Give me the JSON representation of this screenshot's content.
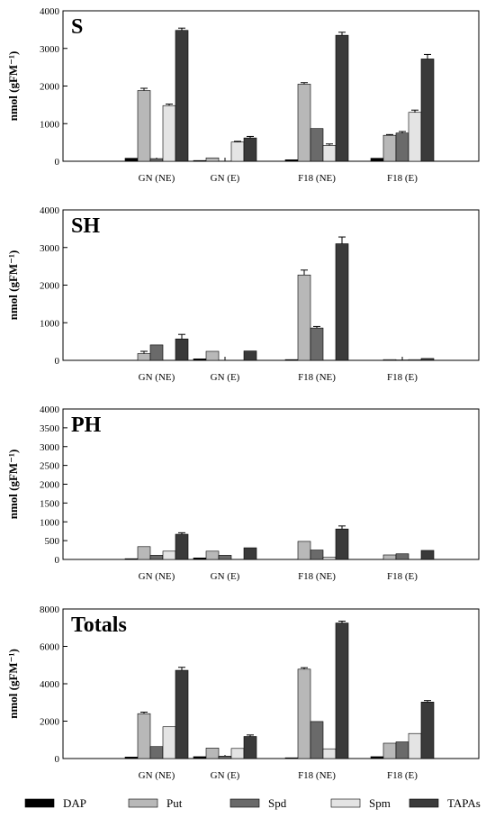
{
  "colors": {
    "DAP": "#000000",
    "Put": "#b8b8b8",
    "Spd": "#6a6a6a",
    "Spm": "#e4e4e4",
    "TAPAs": "#3a3a3a"
  },
  "legend": {
    "items": [
      "DAP",
      "Put",
      "Spd",
      "Spm",
      "TAPAs"
    ],
    "placement": "bottom"
  },
  "chart_data": [
    {
      "type": "bar",
      "title": "S",
      "ylabel": "nmol (gFM⁻¹)",
      "ylim": [
        0,
        4000
      ],
      "yticks": [
        0,
        1000,
        2000,
        3000,
        4000
      ],
      "categories": [
        "GN (NE)",
        "GN (E)",
        "F18 (NE)",
        "F18 (E)"
      ],
      "series": [
        {
          "name": "DAP",
          "values": [
            80,
            20,
            40,
            80
          ],
          "errors": [
            0,
            0,
            0,
            0
          ]
        },
        {
          "name": "Put",
          "values": [
            1880,
            90,
            2050,
            690
          ],
          "errors": [
            60,
            0,
            40,
            20
          ]
        },
        {
          "name": "Spd",
          "values": [
            70,
            0,
            870,
            750
          ],
          "errors": [
            0,
            0,
            0,
            40
          ]
        },
        {
          "name": "Spm",
          "values": [
            1480,
            510,
            420,
            1300
          ],
          "errors": [
            40,
            20,
            40,
            60
          ]
        },
        {
          "name": "TAPAs",
          "values": [
            3480,
            620,
            3350,
            2720
          ],
          "errors": [
            60,
            40,
            80,
            120
          ]
        }
      ]
    },
    {
      "type": "bar",
      "title": "SH",
      "ylabel": "nmol (gFM⁻¹)",
      "ylim": [
        0,
        4000
      ],
      "yticks": [
        0,
        1000,
        2000,
        3000,
        4000
      ],
      "categories": [
        "GN (NE)",
        "GN (E)",
        "F18 (NE)",
        "F18 (E)"
      ],
      "series": [
        {
          "name": "DAP",
          "values": [
            0,
            40,
            20,
            0
          ],
          "errors": [
            0,
            0,
            0,
            0
          ]
        },
        {
          "name": "Put",
          "values": [
            180,
            240,
            2270,
            20
          ],
          "errors": [
            60,
            0,
            130,
            0
          ]
        },
        {
          "name": "Spd",
          "values": [
            410,
            0,
            860,
            10
          ],
          "errors": [
            0,
            0,
            40,
            0
          ]
        },
        {
          "name": "Spm",
          "values": [
            0,
            0,
            0,
            20
          ],
          "errors": [
            0,
            0,
            0,
            0
          ]
        },
        {
          "name": "TAPAs",
          "values": [
            570,
            250,
            3100,
            50
          ],
          "errors": [
            120,
            0,
            180,
            0
          ]
        }
      ]
    },
    {
      "type": "bar",
      "title": "PH",
      "ylabel": "nmol (gFM⁻¹)",
      "ylim": [
        0,
        4000
      ],
      "yticks": [
        0,
        500,
        1000,
        1500,
        2000,
        2500,
        3000,
        3500,
        4000
      ],
      "categories": [
        "GN (NE)",
        "GN (E)",
        "F18 (NE)",
        "F18 (E)"
      ],
      "series": [
        {
          "name": "DAP",
          "values": [
            20,
            40,
            0,
            0
          ],
          "errors": [
            0,
            0,
            0,
            0
          ]
        },
        {
          "name": "Put",
          "values": [
            340,
            220,
            480,
            120
          ],
          "errors": [
            0,
            0,
            0,
            0
          ]
        },
        {
          "name": "Spd",
          "values": [
            110,
            110,
            250,
            150
          ],
          "errors": [
            0,
            0,
            0,
            0
          ]
        },
        {
          "name": "Spm",
          "values": [
            220,
            0,
            60,
            0
          ],
          "errors": [
            0,
            0,
            0,
            0
          ]
        },
        {
          "name": "TAPAs",
          "values": [
            670,
            310,
            810,
            240
          ],
          "errors": [
            40,
            0,
            80,
            0
          ]
        }
      ]
    },
    {
      "type": "bar",
      "title": "Totals",
      "ylabel": "nmol (gFM⁻¹)",
      "ylim": [
        0,
        8000
      ],
      "yticks": [
        0,
        2000,
        4000,
        6000,
        8000
      ],
      "categories": [
        "GN (NE)",
        "GN (E)",
        "F18 (NE)",
        "F18 (E)"
      ],
      "series": [
        {
          "name": "DAP",
          "values": [
            80,
            100,
            40,
            100
          ],
          "errors": [
            0,
            0,
            0,
            0
          ]
        },
        {
          "name": "Put",
          "values": [
            2400,
            560,
            4780,
            820
          ],
          "errors": [
            80,
            0,
            80,
            0
          ]
        },
        {
          "name": "Spd",
          "values": [
            640,
            130,
            1980,
            890
          ],
          "errors": [
            0,
            0,
            0,
            0
          ]
        },
        {
          "name": "Spm",
          "values": [
            1700,
            540,
            520,
            1340
          ],
          "errors": [
            0,
            0,
            0,
            0
          ]
        },
        {
          "name": "TAPAs",
          "values": [
            4720,
            1180,
            7250,
            3020
          ],
          "errors": [
            160,
            80,
            100,
            80
          ]
        }
      ]
    }
  ]
}
